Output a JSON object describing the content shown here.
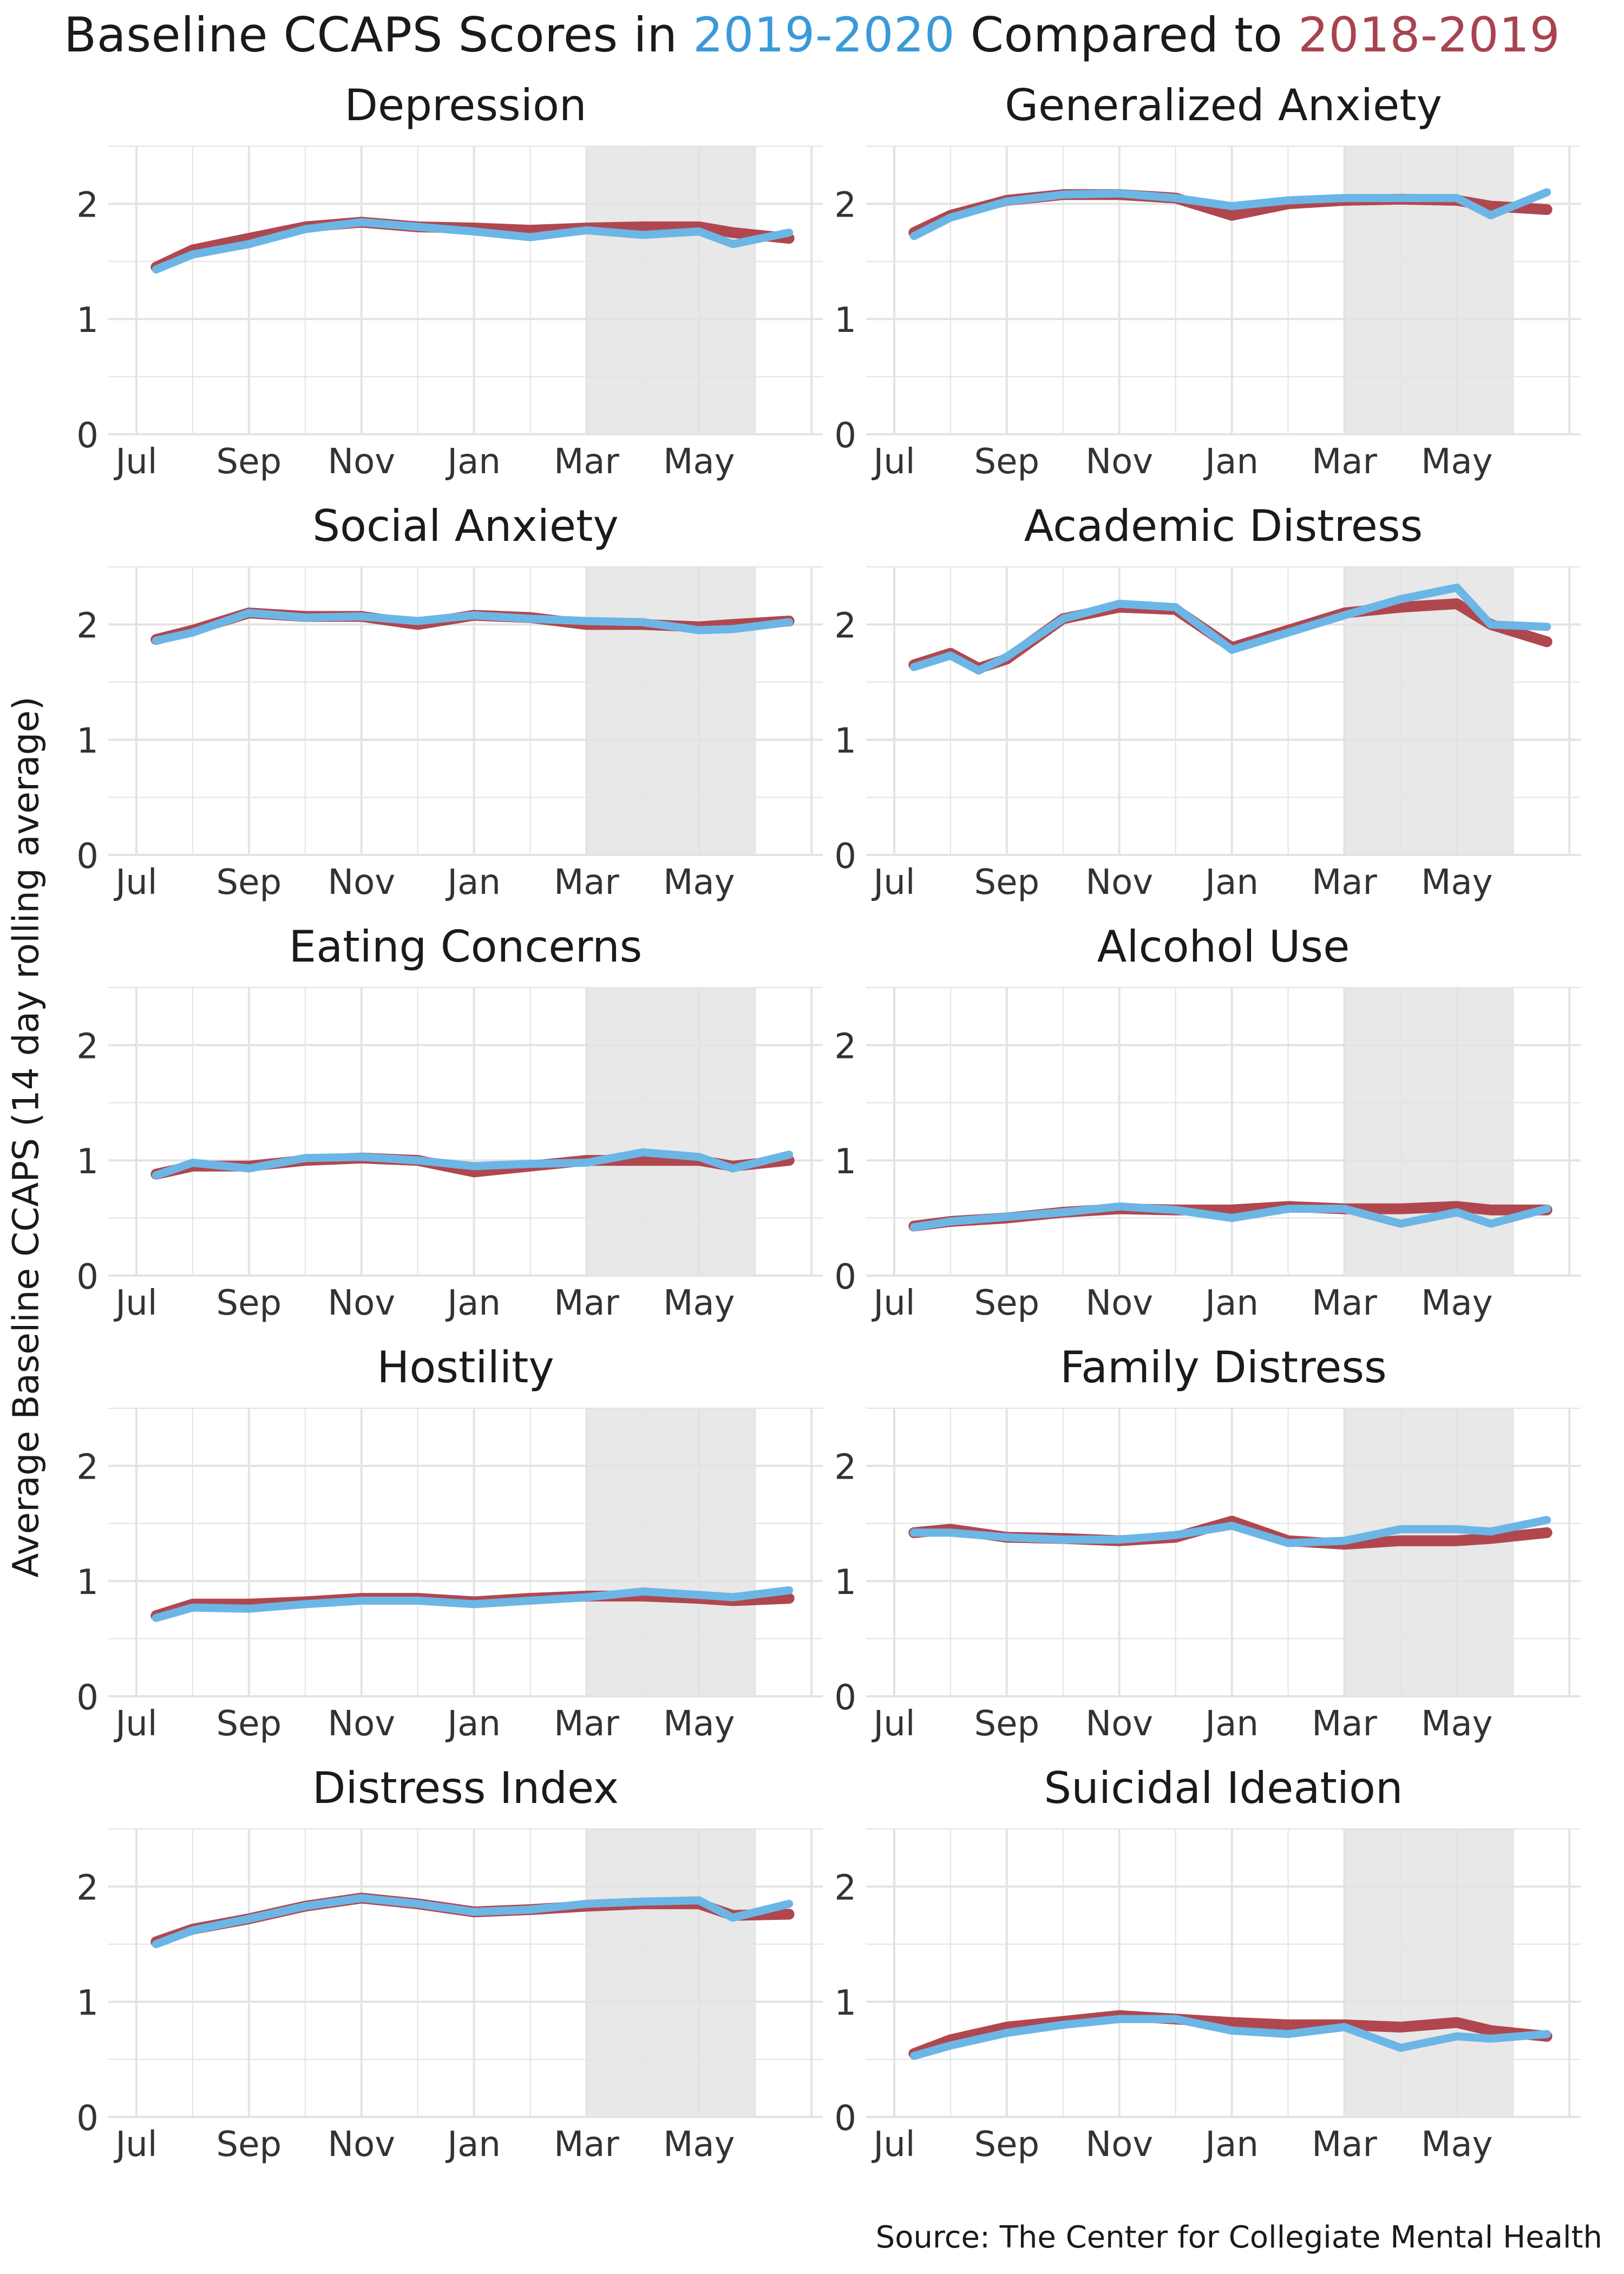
{
  "title": {
    "prefix": "Baseline CCAPS Scores in ",
    "year_a": "2019-2020",
    "middle": " Compared to ",
    "year_b": "2018-2019"
  },
  "ylabel": "Average Baseline CCAPS (14 day rolling average)",
  "source": "Source: The Center for Collegiate Mental Health",
  "colors": {
    "current": "#6cb6e6",
    "previous": "#b0474f",
    "shade": "#e8e8e8",
    "grid": "#e3e3e3"
  },
  "chart_data": {
    "type": "line",
    "x_ticks": [
      "Jul",
      "Sep",
      "Nov",
      "Jan",
      "Mar",
      "May"
    ],
    "x_tick_months": [
      0,
      2,
      4,
      6,
      8,
      10
    ],
    "xlim_months": [
      -0.5,
      12.2
    ],
    "ylim": [
      0,
      2.5
    ],
    "y_ticks": [
      0,
      1,
      2
    ],
    "x_unit": "months since Jul 1",
    "shaded_range_months": [
      8,
      11
    ],
    "legend": [
      "2019-2020",
      "2018-2019"
    ],
    "panels": [
      {
        "title": "Depression",
        "x": [
          0.35,
          1,
          2,
          3,
          4,
          5,
          6,
          7,
          8,
          9,
          10,
          10.6,
          11.6
        ],
        "series": [
          {
            "name": "2018-2019",
            "values": [
              1.45,
              1.6,
              1.7,
              1.8,
              1.84,
              1.8,
              1.79,
              1.77,
              1.79,
              1.8,
              1.8,
              1.75,
              1.7
            ]
          },
          {
            "name": "2019-2020",
            "values": [
              1.43,
              1.56,
              1.65,
              1.78,
              1.84,
              1.8,
              1.76,
              1.71,
              1.77,
              1.73,
              1.76,
              1.65,
              1.75
            ]
          }
        ]
      },
      {
        "title": "Generalized Anxiety",
        "x": [
          0.35,
          1,
          2,
          3,
          4,
          5,
          6,
          7,
          8,
          9,
          10,
          10.6,
          11.6
        ],
        "series": [
          {
            "name": "2018-2019",
            "values": [
              1.75,
              1.9,
              2.03,
              2.08,
              2.08,
              2.05,
              1.9,
              2.0,
              2.03,
              2.04,
              2.03,
              1.98,
              1.95
            ]
          },
          {
            "name": "2019-2020",
            "values": [
              1.72,
              1.88,
              2.02,
              2.08,
              2.09,
              2.05,
              1.98,
              2.03,
              2.05,
              2.05,
              2.05,
              1.9,
              2.1
            ]
          }
        ]
      },
      {
        "title": "Social Anxiety",
        "x": [
          0.35,
          1,
          2,
          3,
          4,
          5,
          6,
          7,
          8,
          9,
          10,
          10.6,
          11.6
        ],
        "series": [
          {
            "name": "2018-2019",
            "values": [
              1.87,
              1.95,
              2.1,
              2.07,
              2.07,
              2.0,
              2.08,
              2.06,
              2.0,
              2.0,
              1.98,
              2.0,
              2.03
            ]
          },
          {
            "name": "2019-2020",
            "values": [
              1.86,
              1.93,
              2.1,
              2.06,
              2.07,
              2.03,
              2.08,
              2.05,
              2.03,
              2.02,
              1.95,
              1.96,
              2.02
            ]
          }
        ]
      },
      {
        "title": "Academic Distress",
        "x": [
          0.35,
          1,
          1.5,
          2,
          3,
          4,
          5,
          6,
          7,
          8,
          9,
          10,
          10.6,
          11.6
        ],
        "series": [
          {
            "name": "2018-2019",
            "values": [
              1.65,
              1.75,
              1.62,
              1.7,
              2.05,
              2.15,
              2.13,
              1.8,
              1.95,
              2.1,
              2.15,
              2.18,
              2.0,
              1.85
            ]
          },
          {
            "name": "2019-2020",
            "values": [
              1.63,
              1.73,
              1.6,
              1.72,
              2.05,
              2.18,
              2.15,
              1.78,
              1.93,
              2.08,
              2.22,
              2.32,
              2.0,
              1.98
            ]
          }
        ]
      },
      {
        "title": "Eating Concerns",
        "x": [
          0.35,
          1,
          2,
          3,
          4,
          5,
          6,
          7,
          8,
          9,
          10,
          10.6,
          11.6
        ],
        "series": [
          {
            "name": "2018-2019",
            "values": [
              0.88,
              0.95,
              0.95,
              1.0,
              1.02,
              1.0,
              0.9,
              0.95,
              1.0,
              1.0,
              1.0,
              0.95,
              1.0
            ]
          },
          {
            "name": "2019-2020",
            "values": [
              0.87,
              0.98,
              0.93,
              1.02,
              1.03,
              1.0,
              0.95,
              0.97,
              0.98,
              1.07,
              1.03,
              0.93,
              1.05
            ]
          }
        ]
      },
      {
        "title": "Alcohol Use",
        "x": [
          0.35,
          1,
          2,
          3,
          4,
          5,
          6,
          7,
          8,
          9,
          10,
          10.6,
          11.6
        ],
        "series": [
          {
            "name": "2018-2019",
            "values": [
              0.43,
              0.47,
              0.5,
              0.55,
              0.58,
              0.57,
              0.57,
              0.6,
              0.58,
              0.58,
              0.6,
              0.57,
              0.57
            ]
          },
          {
            "name": "2019-2020",
            "values": [
              0.42,
              0.47,
              0.51,
              0.55,
              0.6,
              0.57,
              0.5,
              0.58,
              0.58,
              0.45,
              0.55,
              0.45,
              0.58
            ]
          }
        ]
      },
      {
        "title": "Hostility",
        "x": [
          0.35,
          1,
          2,
          3,
          4,
          5,
          6,
          7,
          8,
          9,
          10,
          10.6,
          11.6
        ],
        "series": [
          {
            "name": "2018-2019",
            "values": [
              0.7,
              0.8,
              0.8,
              0.82,
              0.85,
              0.85,
              0.82,
              0.85,
              0.87,
              0.87,
              0.85,
              0.83,
              0.85
            ]
          },
          {
            "name": "2019-2020",
            "values": [
              0.68,
              0.77,
              0.76,
              0.8,
              0.83,
              0.83,
              0.8,
              0.83,
              0.86,
              0.91,
              0.88,
              0.86,
              0.92
            ]
          }
        ]
      },
      {
        "title": "Family Distress",
        "x": [
          0.35,
          1,
          2,
          3,
          4,
          5,
          6,
          7,
          8,
          9,
          10,
          10.6,
          11.6
        ],
        "series": [
          {
            "name": "2018-2019",
            "values": [
              1.42,
              1.45,
              1.38,
              1.37,
              1.35,
              1.38,
              1.52,
              1.35,
              1.32,
              1.35,
              1.35,
              1.37,
              1.42
            ]
          },
          {
            "name": "2019-2020",
            "values": [
              1.42,
              1.42,
              1.38,
              1.36,
              1.36,
              1.4,
              1.48,
              1.33,
              1.35,
              1.45,
              1.45,
              1.43,
              1.53
            ]
          }
        ]
      },
      {
        "title": "Distress Index",
        "x": [
          0.35,
          1,
          2,
          3,
          4,
          5,
          6,
          7,
          8,
          9,
          10,
          10.6,
          11.6
        ],
        "series": [
          {
            "name": "2018-2019",
            "values": [
              1.52,
              1.63,
              1.72,
              1.83,
              1.9,
              1.85,
              1.78,
              1.8,
              1.83,
              1.85,
              1.85,
              1.75,
              1.76
            ]
          },
          {
            "name": "2019-2020",
            "values": [
              1.5,
              1.62,
              1.72,
              1.83,
              1.9,
              1.85,
              1.78,
              1.8,
              1.85,
              1.87,
              1.88,
              1.73,
              1.85
            ]
          }
        ]
      },
      {
        "title": "Suicidal Ideation",
        "x": [
          0.35,
          1,
          2,
          3,
          4,
          5,
          6,
          7,
          8,
          9,
          10,
          10.6,
          11.6
        ],
        "series": [
          {
            "name": "2018-2019",
            "values": [
              0.55,
              0.67,
              0.78,
              0.83,
              0.88,
              0.85,
              0.82,
              0.8,
              0.8,
              0.78,
              0.82,
              0.75,
              0.7
            ]
          },
          {
            "name": "2019-2020",
            "values": [
              0.53,
              0.62,
              0.73,
              0.8,
              0.85,
              0.85,
              0.75,
              0.72,
              0.78,
              0.6,
              0.7,
              0.68,
              0.72
            ]
          }
        ]
      }
    ]
  }
}
